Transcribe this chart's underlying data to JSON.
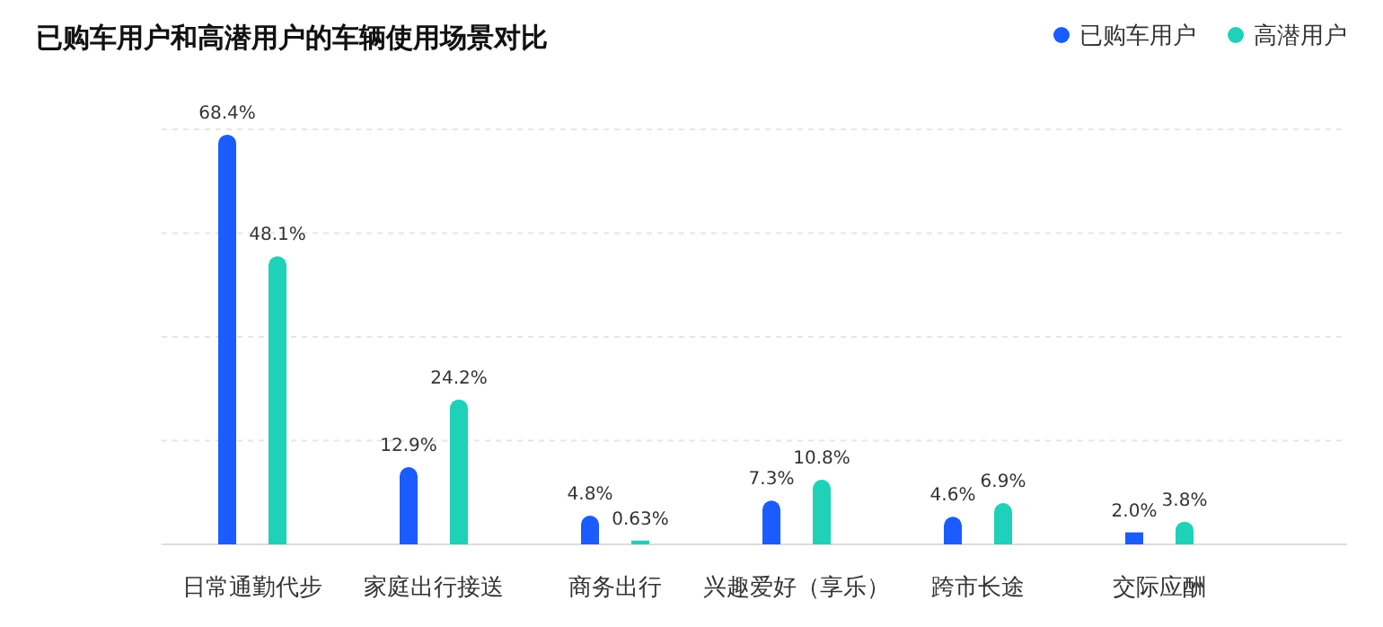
{
  "chart_data": {
    "type": "bar",
    "title": "已购车用户和高潜用户的车辆使用场景对比",
    "categories": [
      "日常通勤代步",
      "家庭出行接送",
      "商务出行",
      "兴趣爱好（享乐）",
      "跨市长途",
      "交际应酬"
    ],
    "series": [
      {
        "name": "已购车用户",
        "color": "#1a5cff",
        "values": [
          68.4,
          12.9,
          4.8,
          7.3,
          4.6,
          2.0
        ],
        "value_labels": [
          "68.4%",
          "12.9%",
          "4.8%",
          "7.3%",
          "4.6%",
          "2.0%"
        ]
      },
      {
        "name": "高潜用户",
        "color": "#1ed1b8",
        "values": [
          48.1,
          24.2,
          0.63,
          10.8,
          6.9,
          3.8
        ],
        "value_labels": [
          "48.1%",
          "24.2%",
          "0.63%",
          "10.8%",
          "6.9%",
          "3.8%"
        ]
      }
    ],
    "grid": "y",
    "legend": "top right"
  }
}
